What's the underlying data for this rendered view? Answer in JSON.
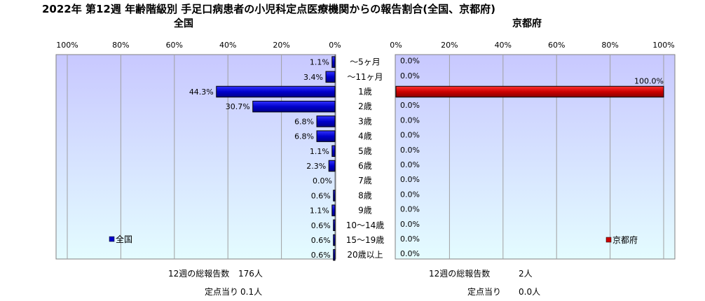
{
  "title": "2022年 第12週  年齢階級別 手足口病患者の小児科定点医療機関からの報告割合(全国、京都府)",
  "colors": {
    "zenkoku_bar": "#0000cc",
    "kyoto_bar": "#cc0000",
    "plot_top": "#c8c8ff",
    "plot_bottom": "#e4fcff"
  },
  "chart_data": [
    {
      "type": "bar",
      "orientation": "horizontal",
      "subtitle": "全国",
      "direction": "reversed",
      "categories": [
        "～5ヶ月",
        "～11ヶ月",
        "1歳",
        "2歳",
        "3歳",
        "4歳",
        "5歳",
        "6歳",
        "7歳",
        "8歳",
        "9歳",
        "10～14歳",
        "15～19歳",
        "20歳以上"
      ],
      "series": [
        {
          "name": "全国",
          "values": [
            1.1,
            3.4,
            44.3,
            30.7,
            6.8,
            6.8,
            1.1,
            2.3,
            0.0,
            0.6,
            1.1,
            0.6,
            0.6,
            0.6
          ],
          "labels": [
            "1.1%",
            "3.4%",
            "44.3%",
            "30.7%",
            "6.8%",
            "6.8%",
            "1.1%",
            "2.3%",
            "0.0%",
            "0.6%",
            "1.1%",
            "0.6%",
            "0.6%",
            "0.6%"
          ]
        }
      ],
      "xlim": [
        0,
        100
      ],
      "ticks": [
        "100%",
        "80%",
        "60%",
        "40%",
        "20%",
        "0%"
      ],
      "legend": "bottom-left",
      "grid": true
    },
    {
      "type": "bar",
      "orientation": "horizontal",
      "subtitle": "京都府",
      "direction": "normal",
      "categories": [
        "～5ヶ月",
        "～11ヶ月",
        "1歳",
        "2歳",
        "3歳",
        "4歳",
        "5歳",
        "6歳",
        "7歳",
        "8歳",
        "9歳",
        "10～14歳",
        "15～19歳",
        "20歳以上"
      ],
      "series": [
        {
          "name": "京都府",
          "values": [
            0.0,
            0.0,
            100.0,
            0.0,
            0.0,
            0.0,
            0.0,
            0.0,
            0.0,
            0.0,
            0.0,
            0.0,
            0.0,
            0.0
          ],
          "labels": [
            "0.0%",
            "0.0%",
            "100.0%",
            "0.0%",
            "0.0%",
            "0.0%",
            "0.0%",
            "0.0%",
            "0.0%",
            "0.0%",
            "0.0%",
            "0.0%",
            "0.0%",
            "0.0%"
          ]
        }
      ],
      "xlim": [
        0,
        100
      ],
      "ticks": [
        "0%",
        "20%",
        "40%",
        "60%",
        "80%",
        "100%"
      ],
      "legend": "bottom-right",
      "grid": true
    }
  ],
  "footer": {
    "zenkoku": {
      "total_label": "12週の総報告数",
      "total_value": "176人",
      "per_label": "定点当り",
      "per_value": "0.1人"
    },
    "kyoto": {
      "total_label": "12週の総報告数",
      "total_value": "2人",
      "per_label": "定点当り",
      "per_value": "0.0人"
    }
  }
}
